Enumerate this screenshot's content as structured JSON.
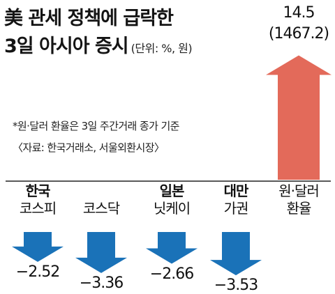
{
  "title": {
    "line1": "美 관세 정책에 급락한",
    "line2": "3일 아시아 증시",
    "unit": "(단위: %, 원)"
  },
  "notes": {
    "fx_basis": "*원·달러 환율은 3일 주간거래 종가 기준",
    "source": "〈자료: 한국거래소, 서울외환시장〉"
  },
  "colors": {
    "down": "#1a72b8",
    "up": "#e36a5a",
    "axis": "#222222"
  },
  "chart_data": {
    "type": "bar",
    "title": "美 관세 정책에 급락한 3일 아시아 증시",
    "unit": "(단위: %, 원)",
    "categories": [
      "한국 코스피",
      "코스닥",
      "일본 닛케이",
      "대만 가권",
      "원·달러 환율"
    ],
    "values": [
      -2.52,
      -3.36,
      -2.66,
      -3.53,
      14.5
    ],
    "value_labels": [
      "−2.52",
      "−3.36",
      "−2.66",
      "−3.53",
      "14.5"
    ],
    "fx_level_label": "(1467.2)",
    "label_lines": [
      {
        "strong": "한국",
        "regular": "코스피"
      },
      {
        "strong": "",
        "regular": "코스닥"
      },
      {
        "strong": "일본",
        "regular": "닛케이"
      },
      {
        "strong": "대만",
        "regular": "가권"
      },
      {
        "strong": "",
        "regular": "원·달러 환율"
      }
    ],
    "ylim": [
      -3.53,
      14.5
    ]
  }
}
